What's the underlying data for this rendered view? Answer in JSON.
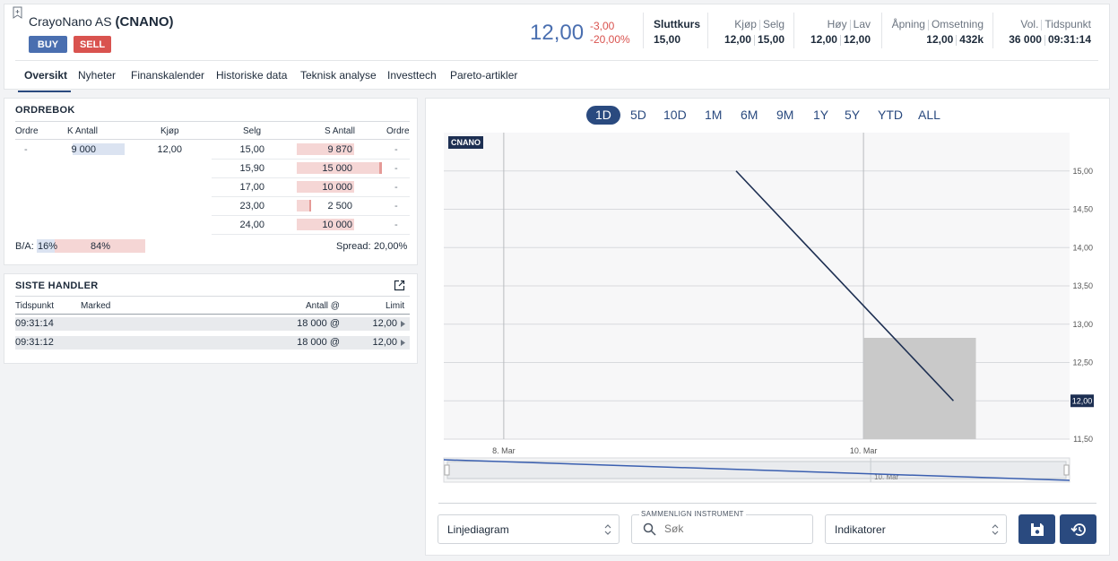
{
  "header": {
    "company_name": "CrayoNano AS",
    "ticker": "(CNANO)",
    "buy_label": "BUY",
    "sell_label": "SELL",
    "last_price": "12,00",
    "change_abs": "-3,00",
    "change_pct": "-20,00%",
    "stats": {
      "sluttkurs_label": "Sluttkurs",
      "sluttkurs": "15,00",
      "kjop_label": "Kjøp",
      "kjop": "12,00",
      "selg_label": "Selg",
      "selg": "15,00",
      "hoy_label": "Høy",
      "hoy": "12,00",
      "lav_label": "Lav",
      "lav": "12,00",
      "apning_label": "Åpning",
      "apning": "12,00",
      "omsetning_label": "Omsetning",
      "omsetning": "432k",
      "vol_label": "Vol.",
      "vol": "36 000",
      "tidspunkt_label": "Tidspunkt",
      "tidspunkt": "09:31:14"
    },
    "tabs": [
      "Oversikt",
      "Nyheter",
      "Finanskalender",
      "Historiske data",
      "Teknisk analyse",
      "Investtech",
      "Pareto-artikler"
    ]
  },
  "orderbook": {
    "title": "ORDREBOK",
    "headers": [
      "Ordre",
      "K Antall",
      "Kjøp",
      "Selg",
      "S Antall",
      "Ordre"
    ],
    "rows": [
      {
        "ordre_k": "-",
        "k_antall": "9 000",
        "kjop": "12,00",
        "selg": "15,00",
        "s_antall": "9 870",
        "ordre_s": "-"
      },
      {
        "ordre_k": "",
        "k_antall": "",
        "kjop": "",
        "selg": "15,90",
        "s_antall": "15 000",
        "ordre_s": "-"
      },
      {
        "ordre_k": "",
        "k_antall": "",
        "kjop": "",
        "selg": "17,00",
        "s_antall": "10 000",
        "ordre_s": "-"
      },
      {
        "ordre_k": "",
        "k_antall": "",
        "kjop": "",
        "selg": "23,00",
        "s_antall": "2 500",
        "ordre_s": "-"
      },
      {
        "ordre_k": "",
        "k_antall": "",
        "kjop": "",
        "selg": "24,00",
        "s_antall": "10 000",
        "ordre_s": "-"
      }
    ],
    "ba_label": "B/A:",
    "ba_buy_pct": "16%",
    "ba_sell_pct": "84%",
    "spread_label": "Spread:",
    "spread_value": "20,00%"
  },
  "trades": {
    "title": "SISTE HANDLER",
    "headers": [
      "Tidspunkt",
      "Marked",
      "Antall @",
      "Limit"
    ],
    "rows": [
      {
        "time": "09:31:14",
        "market": "",
        "qty": "18 000 @",
        "limit": "12,00"
      },
      {
        "time": "09:31:12",
        "market": "",
        "qty": "18 000 @",
        "limit": "12,00"
      }
    ]
  },
  "chart_panel": {
    "periods": [
      "1D",
      "5D",
      "10D",
      "1M",
      "6M",
      "9M",
      "1Y",
      "5Y",
      "YTD",
      "ALL"
    ],
    "active_period": "1D",
    "ticker_tag": "CNANO",
    "last_price_tag": "12,00",
    "chart_type_select": "Linjediagram",
    "compare_label": "SAMMENLIGN INSTRUMENT",
    "compare_placeholder": "Søk",
    "indicators_select": "Indikatorer"
  },
  "chart_data": {
    "type": "line",
    "series": [
      {
        "values": [
          {
            "x": "2023-03-09 07:00",
            "y": 15.0
          },
          {
            "x": "2023-03-10 12:00",
            "y": 12.0
          }
        ]
      }
    ],
    "volume_bar": {
      "x_start": "2023-03-10 00:00",
      "x_end": "2023-03-10 15:00",
      "value": 36000
    },
    "x_tick_labels": [
      "8. Mar",
      "10. Mar"
    ],
    "navigator_label": "10. Mar",
    "y_ticks": [
      11.5,
      12.0,
      12.5,
      13.0,
      13.5,
      14.0,
      14.5,
      15.0
    ],
    "y_tick_labels": [
      "11,50",
      "12,00",
      "12,50",
      "13,00",
      "13,50",
      "14,00",
      "14,50",
      "15,00"
    ],
    "ylim": [
      11.5,
      15.5
    ],
    "grid": true,
    "colors": {
      "line": "#1d2f52",
      "volume": "#c9c9c9",
      "navigator": "#3a5fb0"
    }
  }
}
